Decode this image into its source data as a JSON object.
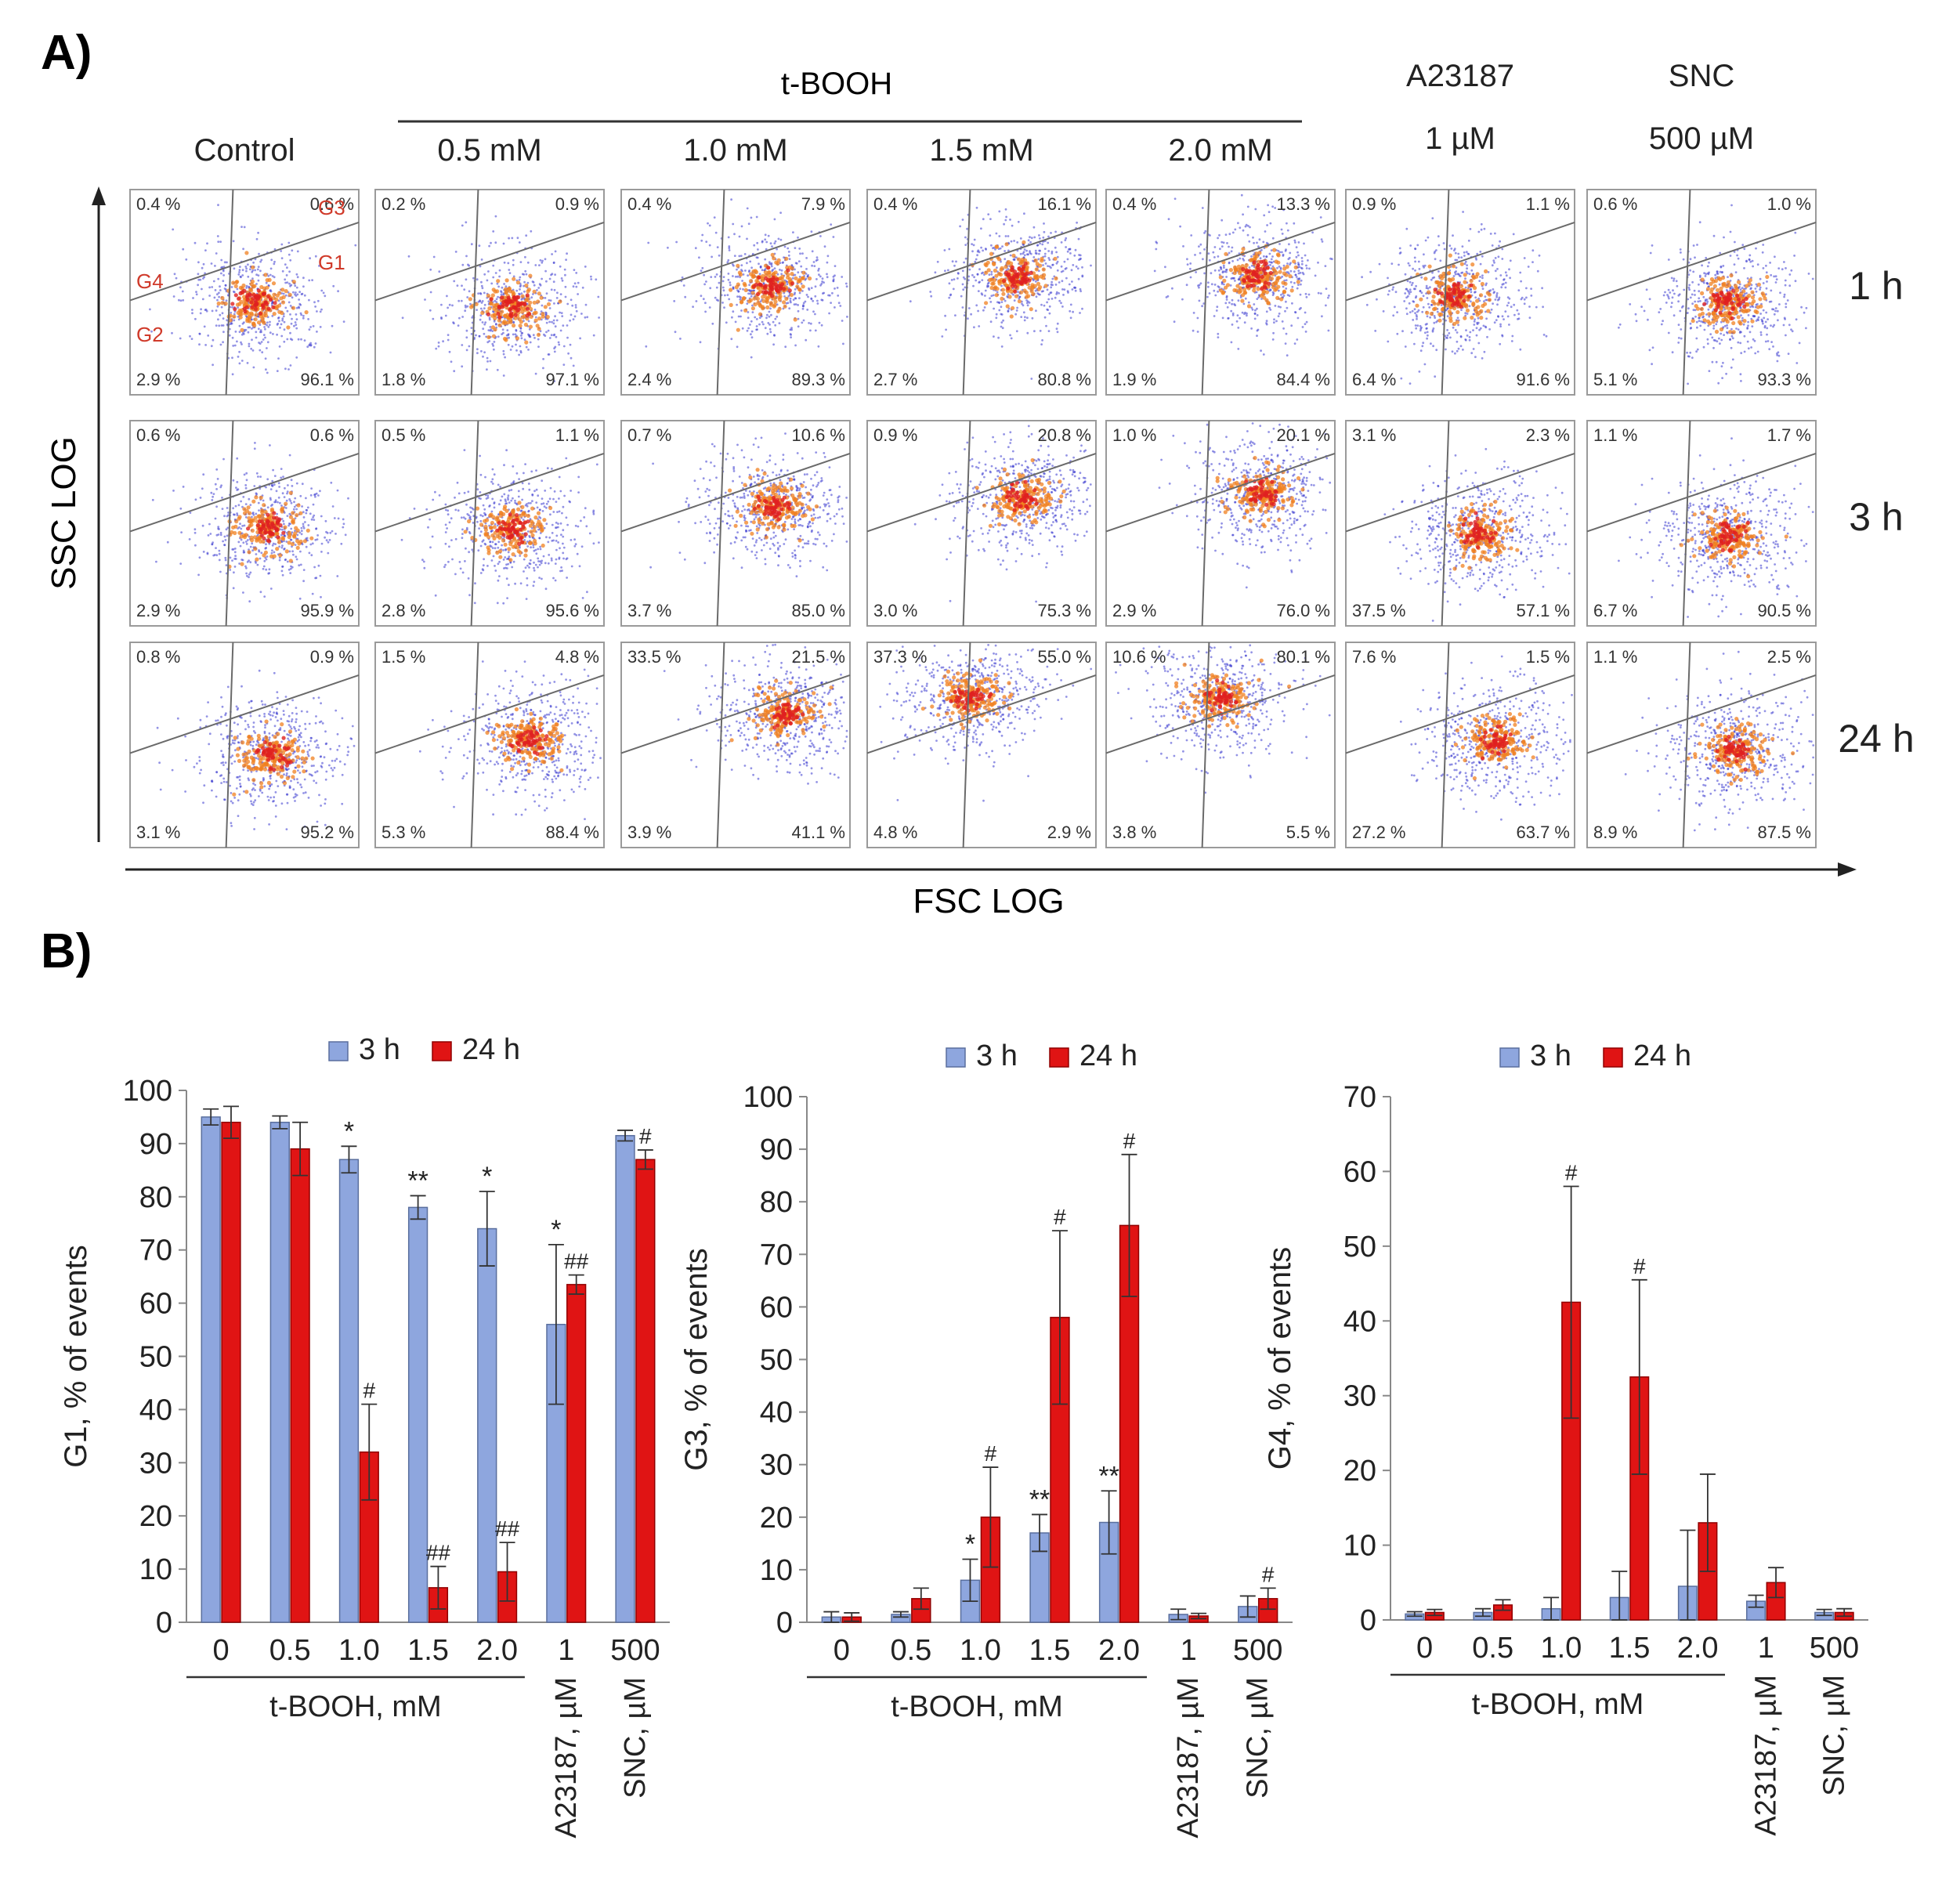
{
  "colors": {
    "bar_3h": "#8ea6de",
    "bar_3h_edge": "#5a6f9e",
    "bar_24h": "#e01414",
    "bar_24h_edge": "#900000",
    "gate_label": "#d03a2a",
    "gate_line": "#6a6a6a",
    "text": "#222222"
  },
  "panel_a": {
    "label": "A)",
    "group_title": "t-BOOH",
    "columns": [
      {
        "name": "Control",
        "conc": ""
      },
      {
        "name": "",
        "conc": "0.5 mM"
      },
      {
        "name": "",
        "conc": "1.0 mM"
      },
      {
        "name": "",
        "conc": "1.5 mM"
      },
      {
        "name": "",
        "conc": "2.0 mM"
      },
      {
        "name": "A23187",
        "conc": "1 µM"
      },
      {
        "name": "SNC",
        "conc": "500 µM"
      }
    ],
    "rows": [
      "1 h",
      "3 h",
      "24 h"
    ],
    "gate_names": [
      "G1",
      "G2",
      "G3",
      "G4"
    ],
    "y_axis_label": "SSC  LOG",
    "x_axis_label": "FSC LOG",
    "plots": [
      [
        {
          "tl": "0.4 %",
          "tr": "0.6 %",
          "bl": "2.9 %",
          "br": "96.1 %",
          "ctr": [
            0.55,
            0.55
          ]
        },
        {
          "tl": "0.2 %",
          "tr": "0.9 %",
          "bl": "1.8 %",
          "br": "97.1 %",
          "ctr": [
            0.6,
            0.57
          ]
        },
        {
          "tl": "0.4 %",
          "tr": "7.9 %",
          "bl": "2.4 %",
          "br": "89.3 %",
          "ctr": [
            0.65,
            0.47
          ]
        },
        {
          "tl": "0.4 %",
          "tr": "16.1 %",
          "bl": "2.7 %",
          "br": "80.8 %",
          "ctr": [
            0.66,
            0.42
          ]
        },
        {
          "tl": "0.4 %",
          "tr": "13.3 %",
          "bl": "1.9 %",
          "br": "84.4 %",
          "ctr": [
            0.66,
            0.42
          ]
        },
        {
          "tl": "0.9 %",
          "tr": "1.1 %",
          "bl": "6.4 %",
          "br": "91.6 %",
          "ctr": [
            0.48,
            0.52
          ]
        },
        {
          "tl": "0.6 %",
          "tr": "1.0 %",
          "bl": "5.1 %",
          "br": "93.3 %",
          "ctr": [
            0.62,
            0.55
          ]
        }
      ],
      [
        {
          "tl": "0.6 %",
          "tr": "0.6 %",
          "bl": "2.9 %",
          "br": "95.9 %",
          "ctr": [
            0.6,
            0.52
          ]
        },
        {
          "tl": "0.5 %",
          "tr": "1.1 %",
          "bl": "2.8 %",
          "br": "95.6 %",
          "ctr": [
            0.6,
            0.53
          ]
        },
        {
          "tl": "0.7 %",
          "tr": "10.6 %",
          "bl": "3.7 %",
          "br": "85.0 %",
          "ctr": [
            0.67,
            0.42
          ]
        },
        {
          "tl": "0.9 %",
          "tr": "20.8 %",
          "bl": "3.0 %",
          "br": "75.3 %",
          "ctr": [
            0.68,
            0.38
          ]
        },
        {
          "tl": "1.0 %",
          "tr": "20.1 %",
          "bl": "2.9 %",
          "br": "76.0 %",
          "ctr": [
            0.68,
            0.35
          ]
        },
        {
          "tl": "3.1 %",
          "tr": "2.3 %",
          "bl": "37.5 %",
          "br": "57.1 %",
          "ctr": [
            0.58,
            0.55
          ]
        },
        {
          "tl": "1.1 %",
          "tr": "1.7 %",
          "bl": "6.7 %",
          "br": "90.5 %",
          "ctr": [
            0.62,
            0.56
          ]
        }
      ],
      [
        {
          "tl": "0.8 %",
          "tr": "0.9 %",
          "bl": "3.1 %",
          "br": "95.2 %",
          "ctr": [
            0.62,
            0.55
          ]
        },
        {
          "tl": "1.5 %",
          "tr": "4.8 %",
          "bl": "5.3 %",
          "br": "88.4 %",
          "ctr": [
            0.68,
            0.48
          ]
        },
        {
          "tl": "33.5 %",
          "tr": "21.5 %",
          "bl": "3.9 %",
          "br": "41.1 %",
          "ctr": [
            0.72,
            0.35
          ]
        },
        {
          "tl": "37.3 %",
          "tr": "55.0 %",
          "bl": "4.8 %",
          "br": "2.9 %",
          "ctr": [
            0.45,
            0.27
          ]
        },
        {
          "tl": "10.6 %",
          "tr": "80.1 %",
          "bl": "3.8 %",
          "br": "5.5 %",
          "ctr": [
            0.5,
            0.27
          ]
        },
        {
          "tl": "7.6 %",
          "tr": "1.5 %",
          "bl": "27.2 %",
          "br": "63.7 %",
          "ctr": [
            0.65,
            0.48
          ]
        },
        {
          "tl": "1.1 %",
          "tr": "2.5 %",
          "bl": "8.9 %",
          "br": "87.5 %",
          "ctr": [
            0.65,
            0.52
          ]
        }
      ]
    ]
  },
  "panel_b": {
    "label": "B)",
    "legend": [
      "3 h",
      "24 h"
    ],
    "group_label": "t-BOOH, mM",
    "extra_labels": [
      "A23187, µM",
      "SNC, µM"
    ]
  },
  "chart_data": [
    {
      "type": "bar",
      "title": "",
      "ylabel": "G1, % of events",
      "xlabel": "t-BOOH, mM",
      "categories": [
        "0",
        "0.5",
        "1.0",
        "1.5",
        "2.0",
        "1",
        "500"
      ],
      "ylim": [
        0,
        100
      ],
      "yticks": [
        0,
        10,
        20,
        30,
        40,
        50,
        60,
        70,
        80,
        90,
        100
      ],
      "series": [
        {
          "name": "3 h",
          "values": [
            95,
            94,
            87,
            78,
            74,
            56,
            91.5
          ],
          "errors": [
            1.5,
            1.2,
            2.5,
            2.2,
            7,
            15,
            1
          ]
        },
        {
          "name": "24 h",
          "values": [
            94,
            89,
            32,
            6.5,
            9.5,
            63.5,
            87
          ],
          "errors": [
            3,
            5,
            9,
            4,
            5.5,
            1.8,
            1.8
          ]
        }
      ],
      "annotations_3h": [
        "",
        "",
        "*",
        "**",
        "*",
        "*",
        ""
      ],
      "annotations_24h": [
        "",
        "",
        "#",
        "##",
        "##",
        "##",
        "#"
      ]
    },
    {
      "type": "bar",
      "title": "",
      "ylabel": "G3, % of events",
      "xlabel": "t-BOOH, mM",
      "categories": [
        "0",
        "0.5",
        "1.0",
        "1.5",
        "2.0",
        "1",
        "500"
      ],
      "ylim": [
        0,
        100
      ],
      "yticks": [
        0,
        10,
        20,
        30,
        40,
        50,
        60,
        70,
        80,
        90,
        100
      ],
      "series": [
        {
          "name": "3 h",
          "values": [
            1,
            1.5,
            8,
            17,
            19,
            1.5,
            3
          ],
          "errors": [
            1,
            0.5,
            4,
            3.5,
            6,
            1,
            2
          ]
        },
        {
          "name": "24 h",
          "values": [
            1,
            4.5,
            20,
            58,
            75.5,
            1.2,
            4.5
          ],
          "errors": [
            0.8,
            2,
            9.5,
            16.5,
            13.5,
            0.5,
            2
          ]
        }
      ],
      "annotations_3h": [
        "",
        "",
        "*",
        "**",
        "**",
        "",
        ""
      ],
      "annotations_24h": [
        "",
        "",
        "#",
        "#",
        "#",
        "",
        "#"
      ]
    },
    {
      "type": "bar",
      "title": "",
      "ylabel": "G4, % of events",
      "xlabel": "t-BOOH, mM",
      "categories": [
        "0",
        "0.5",
        "1.0",
        "1.5",
        "2.0",
        "1",
        "500"
      ],
      "ylim": [
        0,
        70
      ],
      "yticks": [
        0,
        10,
        20,
        30,
        40,
        50,
        60,
        70
      ],
      "series": [
        {
          "name": "3 h",
          "values": [
            0.8,
            1,
            1.5,
            3,
            4.5,
            2.5,
            1
          ],
          "errors": [
            0.3,
            0.5,
            1.5,
            3.5,
            7.5,
            0.8,
            0.4
          ]
        },
        {
          "name": "24 h",
          "values": [
            1,
            2,
            42.5,
            32.5,
            13,
            5,
            1
          ],
          "errors": [
            0.4,
            0.7,
            15.5,
            13,
            6.5,
            2,
            0.5
          ]
        }
      ],
      "annotations_3h": [
        "",
        "",
        "",
        "",
        "",
        "",
        ""
      ],
      "annotations_24h": [
        "",
        "",
        "#",
        "#",
        "",
        "",
        ""
      ]
    }
  ]
}
